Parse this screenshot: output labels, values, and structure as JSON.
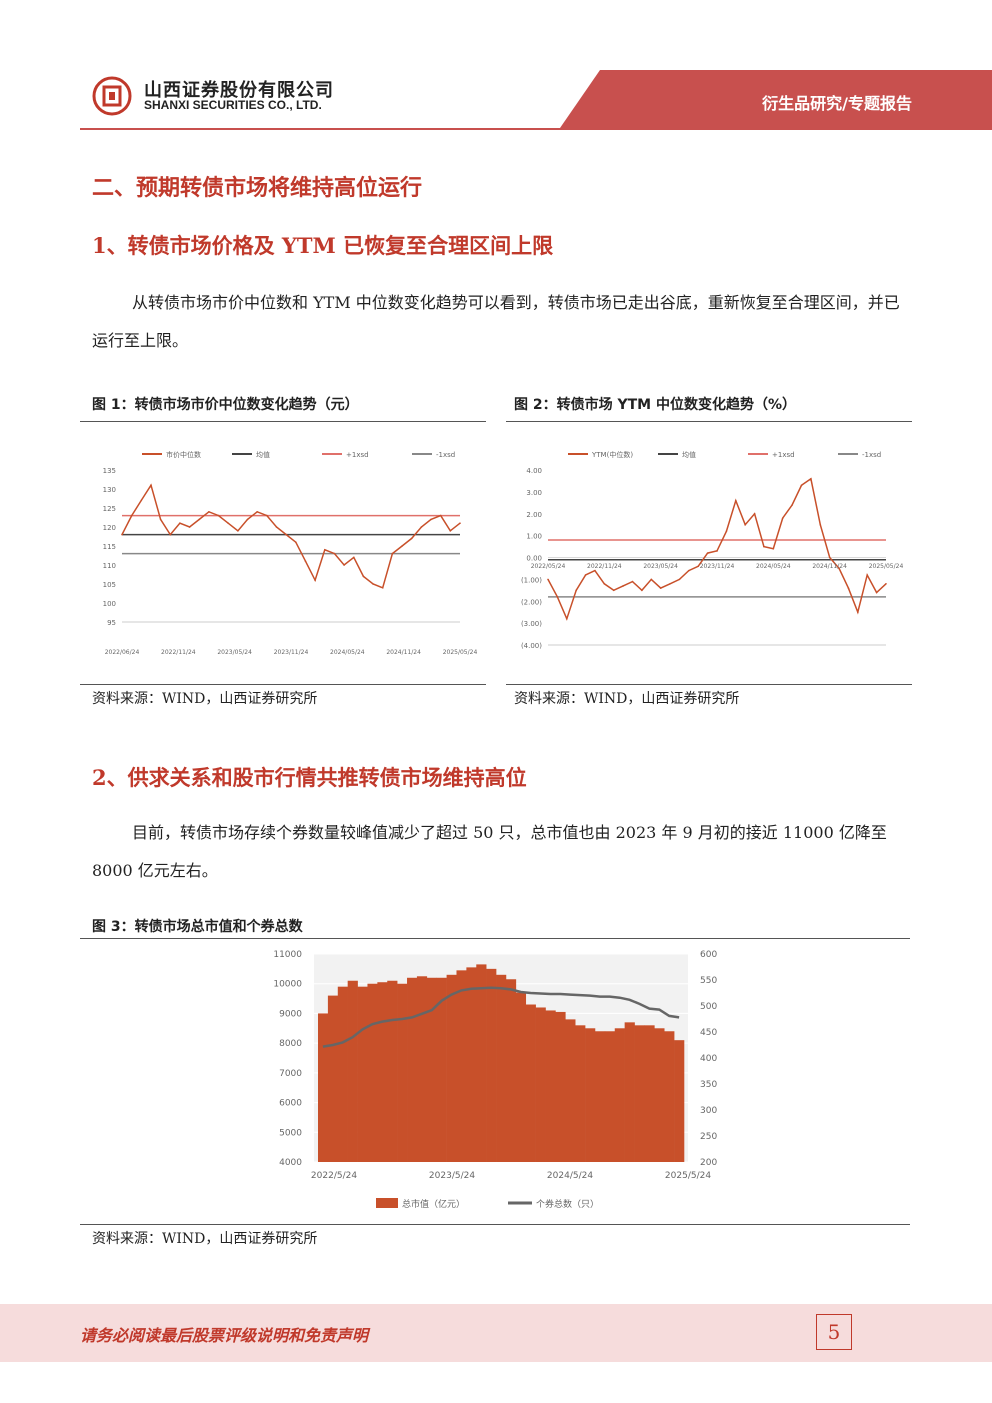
{
  "header": {
    "company_cn": "山西证券股份有限公司",
    "company_en": "SHANXI SECURITIES CO., LTD.",
    "report_type": "衍生品研究/专题报告",
    "brand_color": "#c8504e"
  },
  "section_title": "二、预期转债市场将维持高位运行",
  "subsection1": {
    "title": "1、转债市场价格及 YTM 已恢复至合理区间上限",
    "paragraph": "从转债市场市价中位数和 YTM 中位数变化趋势可以看到，转债市场已走出谷底，重新恢复至合理区间，并已运行至上限。"
  },
  "figure1": {
    "title": "图 1：转债市场市价中位数变化趋势（元）",
    "source": "资料来源：WIND，山西证券研究所"
  },
  "figure2": {
    "title": "图 2：转债市场 YTM 中位数变化趋势（%）",
    "source": "资料来源：WIND，山西证券研究所"
  },
  "subsection2": {
    "title": "2、供求关系和股市行情共推转债市场维持高位",
    "paragraph": "目前，转债市场存续个券数量较峰值减少了超过 50 只，总市值也由 2023 年 9 月初的接近 11000 亿降至 8000 亿元左右。"
  },
  "figure3": {
    "title": "图 3：转债市场总市值和个券总数",
    "source": "资料来源：WIND，山西证券研究所"
  },
  "footer": {
    "disclaimer": "请务必阅读最后股票评级说明和免责声明",
    "page_number": "5"
  },
  "chart_data": [
    {
      "id": "fig1",
      "type": "line",
      "legend": [
        "市价中位数",
        "均值",
        "+1xsd",
        "-1xsd"
      ],
      "x_tick_labels": [
        "2022/06/24",
        "2022/11/24",
        "2023/05/24",
        "2023/11/24",
        "2024/05/24",
        "2024/11/24",
        "2025/05/24"
      ],
      "y_ticks": [
        95,
        100,
        105,
        110,
        115,
        120,
        125,
        130,
        135
      ],
      "ylim": [
        95,
        135
      ],
      "mean": 118,
      "plus_1sd": 123,
      "minus_1sd": 113,
      "series": [
        {
          "name": "市价中位数",
          "color": "#c8502a",
          "x": [
            "2022/06",
            "2022/07",
            "2022/08",
            "2022/09",
            "2022/10",
            "2022/11",
            "2022/12",
            "2023/01",
            "2023/02",
            "2023/03",
            "2023/04",
            "2023/05",
            "2023/06",
            "2023/07",
            "2023/08",
            "2023/09",
            "2023/10",
            "2023/11",
            "2023/12",
            "2024/01",
            "2024/02",
            "2024/03",
            "2024/04",
            "2024/05",
            "2024/06",
            "2024/07",
            "2024/08",
            "2024/09",
            "2024/10",
            "2024/11",
            "2024/12",
            "2025/01",
            "2025/02",
            "2025/03",
            "2025/04",
            "2025/05"
          ],
          "values": [
            118,
            123,
            127,
            131,
            122,
            118,
            121,
            120,
            122,
            124,
            123,
            121,
            119,
            122,
            124,
            123,
            120,
            118,
            116,
            111,
            106,
            114,
            113,
            110,
            112,
            107,
            105,
            104,
            113,
            115,
            117,
            120,
            122,
            123,
            119,
            121
          ]
        }
      ],
      "colors": {
        "mean": "#444444",
        "plus_1sd": "#e0706a",
        "minus_1sd": "#888888"
      }
    },
    {
      "id": "fig2",
      "type": "line",
      "legend": [
        "YTM(中位数)",
        "均值",
        "+1xsd",
        "-1xsd"
      ],
      "x_tick_labels": [
        "2022/05/24",
        "2022/11/24",
        "2023/05/24",
        "2023/11/24",
        "2024/05/24",
        "2024/11/24",
        "2025/05/24"
      ],
      "y_ticks": [
        "4.00",
        "3.00",
        "2.00",
        "1.00",
        "0.00",
        "(1.00)",
        "(2.00)",
        "(3.00)",
        "(4.00)"
      ],
      "ylim": [
        -4,
        4
      ],
      "mean": -0.1,
      "plus_1sd": 0.8,
      "minus_1sd": -1.8,
      "series": [
        {
          "name": "YTM(中位数)",
          "color": "#c8502a",
          "x": [
            "2022/05",
            "2022/06",
            "2022/07",
            "2022/08",
            "2022/09",
            "2022/10",
            "2022/11",
            "2022/12",
            "2023/01",
            "2023/02",
            "2023/03",
            "2023/04",
            "2023/05",
            "2023/06",
            "2023/07",
            "2023/08",
            "2023/09",
            "2023/10",
            "2023/11",
            "2023/12",
            "2024/01",
            "2024/02",
            "2024/03",
            "2024/04",
            "2024/05",
            "2024/06",
            "2024/07",
            "2024/08",
            "2024/09",
            "2024/10",
            "2024/11",
            "2024/12",
            "2025/01",
            "2025/02",
            "2025/03",
            "2025/04",
            "2025/05"
          ],
          "values": [
            -1.0,
            -1.8,
            -2.8,
            -1.5,
            -0.8,
            -0.6,
            -1.2,
            -1.5,
            -1.3,
            -1.1,
            -1.5,
            -1.0,
            -1.4,
            -1.2,
            -1.0,
            -0.6,
            -0.4,
            0.2,
            0.3,
            1.2,
            2.6,
            1.5,
            2.0,
            0.5,
            0.4,
            1.8,
            2.4,
            3.3,
            3.6,
            1.5,
            0.0,
            -0.5,
            -1.4,
            -2.5,
            -0.8,
            -1.6,
            -1.2
          ]
        }
      ],
      "colors": {
        "mean": "#444444",
        "plus_1sd": "#e0706a",
        "minus_1sd": "#888888"
      }
    },
    {
      "id": "fig3",
      "type": "bar",
      "legend": [
        "总市值（亿元）",
        "个券总数（只）"
      ],
      "x_tick_labels": [
        "2022/5/24",
        "2023/5/24",
        "2024/5/24",
        "2025/5/24"
      ],
      "y_left_ticks": [
        4000,
        5000,
        6000,
        7000,
        8000,
        9000,
        10000,
        11000
      ],
      "y_right_ticks": [
        200,
        250,
        300,
        350,
        400,
        450,
        500,
        550,
        600
      ],
      "ylim_left": [
        4000,
        11000
      ],
      "ylim_right": [
        200,
        600
      ],
      "series": [
        {
          "name": "总市值（亿元）",
          "type": "bar",
          "color": "#c8502a",
          "x": [
            "2022/05",
            "2022/06",
            "2022/07",
            "2022/08",
            "2022/09",
            "2022/10",
            "2022/11",
            "2022/12",
            "2023/01",
            "2023/02",
            "2023/03",
            "2023/04",
            "2023/05",
            "2023/06",
            "2023/07",
            "2023/08",
            "2023/09",
            "2023/10",
            "2023/11",
            "2023/12",
            "2024/01",
            "2024/02",
            "2024/03",
            "2024/04",
            "2024/05",
            "2024/06",
            "2024/07",
            "2024/08",
            "2024/09",
            "2024/10",
            "2024/11",
            "2024/12",
            "2025/01",
            "2025/02",
            "2025/03",
            "2025/04",
            "2025/05"
          ],
          "values": [
            9000,
            9600,
            9900,
            10100,
            9900,
            10000,
            10050,
            10100,
            10000,
            10200,
            10250,
            10200,
            10200,
            10300,
            10450,
            10550,
            10650,
            10500,
            10300,
            10150,
            9700,
            9300,
            9200,
            9100,
            9050,
            8800,
            8600,
            8500,
            8400,
            8400,
            8500,
            8700,
            8600,
            8600,
            8500,
            8400,
            8100
          ]
        },
        {
          "name": "个券总数（只）",
          "type": "line",
          "color": "#666666",
          "x": [
            "2022/05",
            "2022/06",
            "2022/07",
            "2022/08",
            "2022/09",
            "2022/10",
            "2022/11",
            "2022/12",
            "2023/01",
            "2023/02",
            "2023/03",
            "2023/04",
            "2023/05",
            "2023/06",
            "2023/07",
            "2023/08",
            "2023/09",
            "2023/10",
            "2023/11",
            "2023/12",
            "2024/01",
            "2024/02",
            "2024/03",
            "2024/04",
            "2024/05",
            "2024/06",
            "2024/07",
            "2024/08",
            "2024/09",
            "2024/10",
            "2024/11",
            "2024/12",
            "2025/01",
            "2025/02",
            "2025/03",
            "2025/04",
            "2025/05"
          ],
          "values": [
            422,
            425,
            430,
            440,
            455,
            465,
            470,
            473,
            475,
            478,
            485,
            492,
            510,
            522,
            530,
            533,
            534,
            535,
            534,
            532,
            527,
            525,
            524,
            523,
            523,
            522,
            521,
            520,
            518,
            518,
            516,
            512,
            504,
            495,
            493,
            481,
            478
          ]
        }
      ]
    }
  ]
}
